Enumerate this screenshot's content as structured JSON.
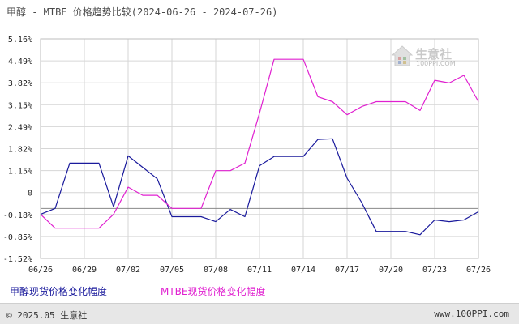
{
  "title": "甲醇 - MTBE 价格趋势比较(2024-06-26 - 2024-07-26)",
  "watermark": {
    "name": "生意社",
    "url": "100PPI.COM"
  },
  "footer": {
    "copyright": "© 2025.05 生意社",
    "site": "www.100PPI.com"
  },
  "colors": {
    "series1": "#1a1a9c",
    "series2": "#e020d0",
    "grid": "#d6d6d6",
    "axis": "#888888",
    "footer_bg": "#e7e7e7"
  },
  "chart_data": {
    "type": "line",
    "x": [
      "06/26",
      "06/27",
      "06/28",
      "06/29",
      "06/30",
      "07/01",
      "07/02",
      "07/03",
      "07/04",
      "07/05",
      "07/06",
      "07/07",
      "07/08",
      "07/09",
      "07/10",
      "07/11",
      "07/12",
      "07/13",
      "07/14",
      "07/15",
      "07/16",
      "07/17",
      "07/18",
      "07/19",
      "07/20",
      "07/21",
      "07/22",
      "07/23",
      "07/24",
      "07/25",
      "07/26"
    ],
    "x_ticks": [
      "06/26",
      "06/29",
      "07/02",
      "07/05",
      "07/08",
      "07/11",
      "07/14",
      "07/17",
      "07/20",
      "07/23",
      "07/26"
    ],
    "y_ticks": [
      "5.16%",
      "4.49%",
      "3.82%",
      "3.15%",
      "2.49%",
      "1.82%",
      "1.15%",
      "0",
      "-0.18%",
      "-0.85%",
      "-1.52%"
    ],
    "ylim": [
      -1.52,
      5.16
    ],
    "grid": true,
    "legend_position": "bottom",
    "series": [
      {
        "name": "甲醇现货价格变化幅度",
        "values": [
          -0.18,
          0.0,
          1.38,
          1.38,
          1.38,
          0.05,
          1.6,
          1.25,
          0.9,
          -0.25,
          -0.25,
          -0.25,
          -0.4,
          -0.03,
          -0.25,
          1.3,
          1.58,
          1.58,
          1.58,
          2.1,
          2.12,
          0.92,
          0.18,
          -0.7,
          -0.7,
          -0.7,
          -0.8,
          -0.35,
          -0.4,
          -0.35,
          -0.1
        ]
      },
      {
        "name": "MTBE现货价格变化幅度",
        "values": [
          -0.18,
          -0.6,
          -0.6,
          -0.6,
          -0.6,
          -0.18,
          0.65,
          0.4,
          0.4,
          0.0,
          0.0,
          0.0,
          1.15,
          1.15,
          1.38,
          2.9,
          4.54,
          4.54,
          4.54,
          3.4,
          3.25,
          2.85,
          3.1,
          3.25,
          3.25,
          3.25,
          2.98,
          3.9,
          3.82,
          4.05,
          3.25
        ]
      }
    ]
  }
}
